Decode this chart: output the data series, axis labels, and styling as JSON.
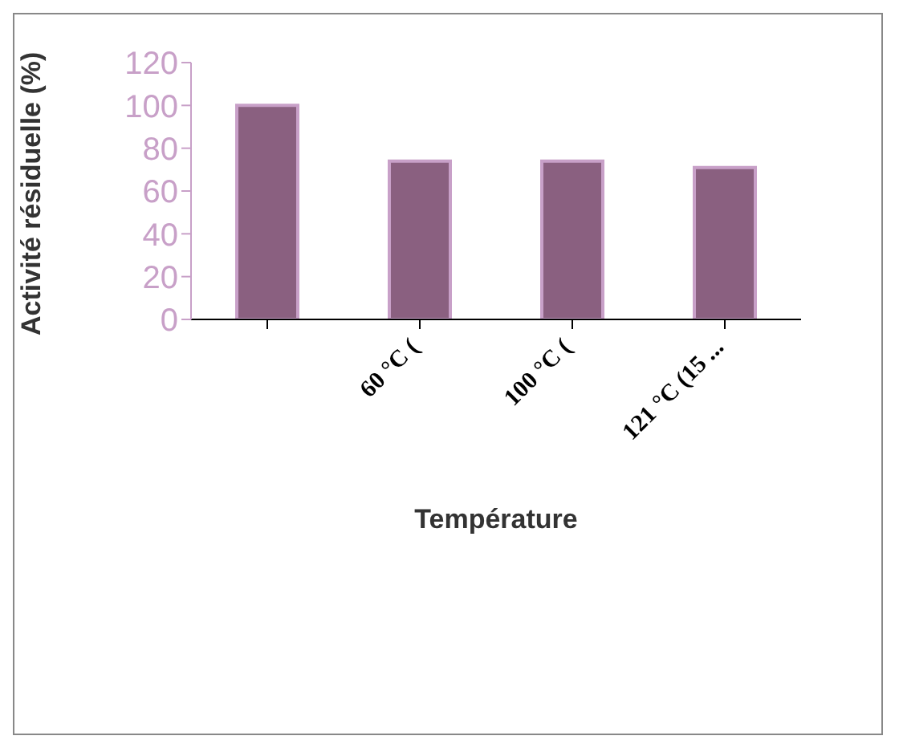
{
  "chart_data": {
    "type": "bar",
    "xlabel": "Température",
    "ylabel": "Activité résiduelle (%)",
    "categories": [
      null,
      "60 °C (",
      "100 °C (",
      "121 °C (15 ..."
    ],
    "values": [
      100,
      74,
      74,
      71
    ],
    "color": "#8a6080",
    "ylim": [
      0,
      120
    ],
    "yticks": [
      0,
      20,
      40,
      60,
      80,
      100,
      120
    ],
    "grid": false,
    "legend": false
  }
}
